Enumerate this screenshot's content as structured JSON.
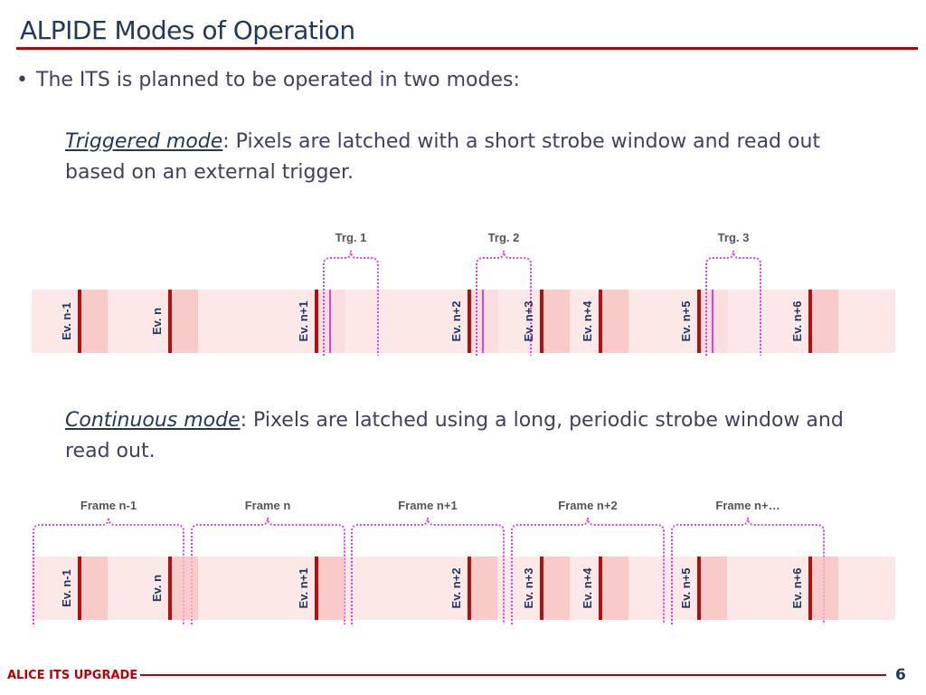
{
  "slide": {
    "title": "ALPIDE Modes of Operation",
    "bullet": "The ITS is planned to be operated in two modes:",
    "triggered": {
      "mode_label": "Triggered mode",
      "description": ": Pixels are latched with a short strobe window and read out based on an external trigger."
    },
    "continuous": {
      "mode_label": "Continuous mode",
      "description": ": Pixels are latched using a long, periodic strobe window and read out."
    }
  },
  "triggered_diagram": {
    "events": [
      "Ev. n-1",
      "Ev. n",
      "Ev. n+1",
      "Ev. n+2",
      "Ev. n+3",
      "Ev. n+4",
      "Ev. n+5",
      "Ev. n+6"
    ],
    "triggers": [
      "Trg. 1",
      "Trg. 2",
      "Trg. 3"
    ]
  },
  "continuous_diagram": {
    "events": [
      "Ev. n-1",
      "Ev. n",
      "Ev. n+1",
      "Ev. n+2",
      "Ev. n+3",
      "Ev. n+4",
      "Ev. n+5",
      "Ev. n+6"
    ],
    "frames": [
      "Frame n-1",
      "Frame n",
      "Frame n+1",
      "Frame n+2",
      "Frame n+…"
    ]
  },
  "footer": {
    "label": "ALICE ITS UPGRADE",
    "page_number": "6"
  },
  "colors": {
    "title": "#1f3864",
    "accent_red": "#c00000",
    "event_line": "#b01010",
    "strobe_magenta": "#e040e0",
    "band": "#fde8e8"
  }
}
